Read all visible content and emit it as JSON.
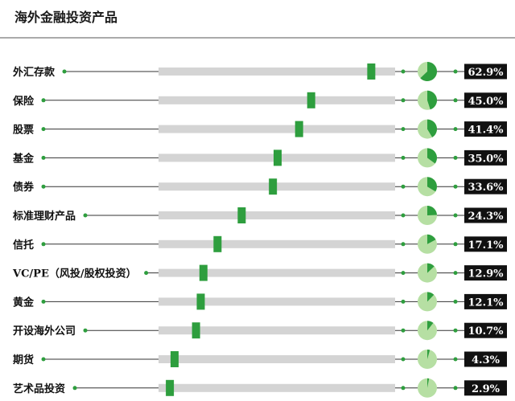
{
  "colors": {
    "accent": "#2e9e3e",
    "pie_background": "#b6dfa3",
    "bar_track": "#d4d4d4",
    "value_box": "#111111",
    "line": "#333333"
  },
  "chart_data": {
    "type": "bar",
    "title": "海外金融投资产品",
    "categories": [
      "外汇存款",
      "保险",
      "股票",
      "基金",
      "债券",
      "标准理财产品",
      "信托",
      "VC/PE（风投/股权投资）",
      "黄金",
      "开设海外公司",
      "期货",
      "艺术品投资"
    ],
    "values": [
      62.9,
      45.0,
      41.4,
      35.0,
      33.6,
      24.3,
      17.1,
      12.9,
      12.1,
      10.7,
      4.3,
      2.9
    ],
    "value_labels": [
      "62.9%",
      "45.0%",
      "41.4%",
      "35.0%",
      "33.6%",
      "24.3%",
      "17.1%",
      "12.9%",
      "12.1%",
      "10.7%",
      "4.3%",
      "2.9%"
    ],
    "unit": "%",
    "xlim": [
      0,
      70
    ],
    "grid": false,
    "legend": "none"
  }
}
